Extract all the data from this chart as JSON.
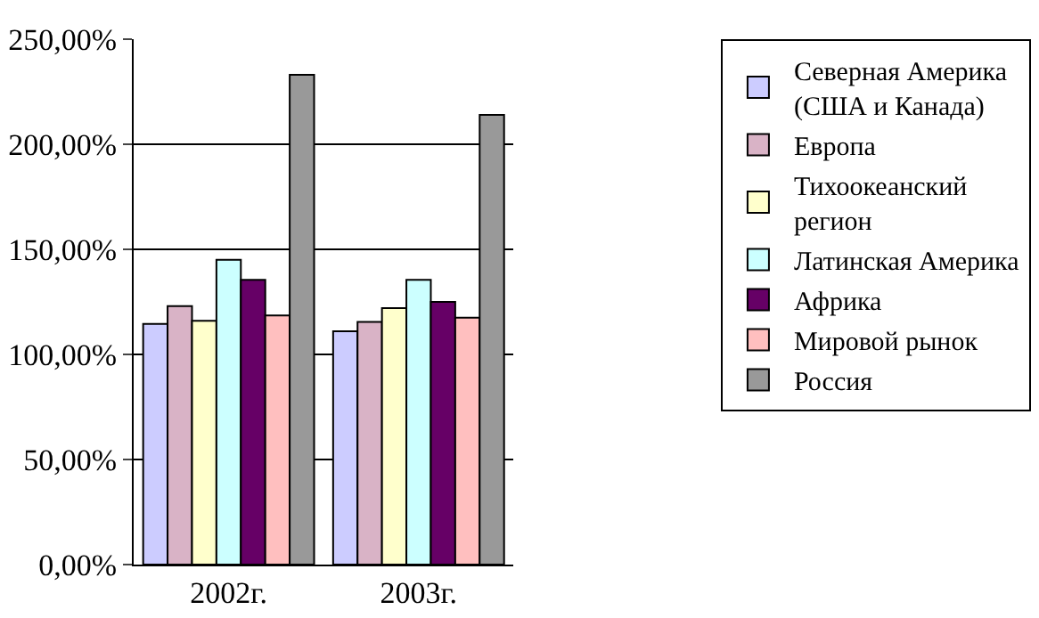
{
  "chart_data": {
    "type": "bar",
    "categories": [
      "2002г.",
      "2003г."
    ],
    "series": [
      {
        "name": "Северная Америка (США и Канада)",
        "color": "#ccccff",
        "values": [
          114.5,
          111
        ]
      },
      {
        "name": "Европа",
        "color": "#d9b3c6",
        "values": [
          123,
          115.5
        ]
      },
      {
        "name": "Тихоокеанский регион",
        "color": "#ffffcc",
        "values": [
          116,
          122
        ]
      },
      {
        "name": "Латинская Америка",
        "color": "#ccffff",
        "values": [
          145,
          135.5
        ]
      },
      {
        "name": "Африка",
        "color": "#660066",
        "values": [
          135.5,
          125
        ]
      },
      {
        "name": "Мировой рынок",
        "color": "#ffbfbf",
        "values": [
          118.5,
          117.5
        ]
      },
      {
        "name": "Россия",
        "color": "#999999",
        "values": [
          233,
          214
        ]
      }
    ],
    "ylim": [
      0,
      250
    ],
    "yticks": [
      {
        "value": 0,
        "label": "0,00%"
      },
      {
        "value": 50,
        "label": "50,00%"
      },
      {
        "value": 100,
        "label": "100,00%"
      },
      {
        "value": 150,
        "label": "150,00%"
      },
      {
        "value": 200,
        "label": "200,00%"
      },
      {
        "value": 250,
        "label": "250,00%"
      }
    ],
    "grid": "y",
    "legend": "right"
  }
}
